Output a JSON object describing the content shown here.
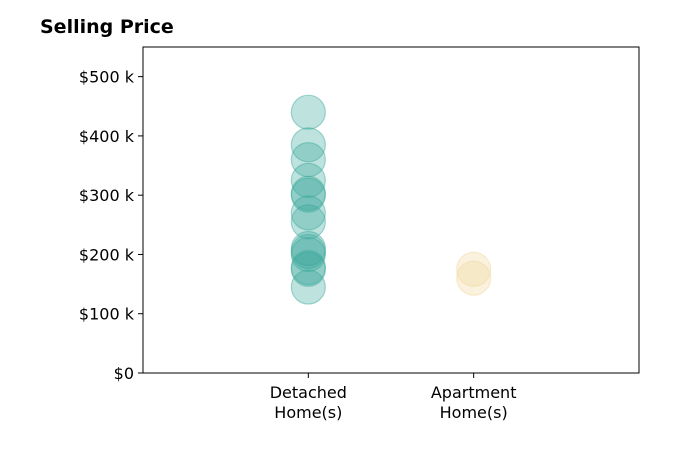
{
  "chart_data": {
    "type": "scatter",
    "title": "Selling Price",
    "xlabel": "",
    "ylabel": "",
    "categories": [
      "Detached\nHome(s)",
      "Apartment\nHome(s)"
    ],
    "x_range": [
      -1,
      2
    ],
    "ylim": [
      0,
      550000
    ],
    "y_ticks": [
      0,
      100000,
      200000,
      300000,
      400000,
      500000
    ],
    "y_tick_labels": [
      "$0",
      "$100 k",
      "$200 k",
      "$300 k",
      "$400 k",
      "$500 k"
    ],
    "grid": false,
    "series": [
      {
        "category_index": 0,
        "color": "#3aa89a",
        "values": [
          440000,
          385000,
          360000,
          325000,
          303000,
          300000,
          270000,
          255000,
          210000,
          205000,
          200000,
          178000,
          175000,
          145000
        ]
      },
      {
        "category_index": 1,
        "color": "#f0d89a",
        "values": [
          175000,
          160000
        ]
      }
    ]
  }
}
